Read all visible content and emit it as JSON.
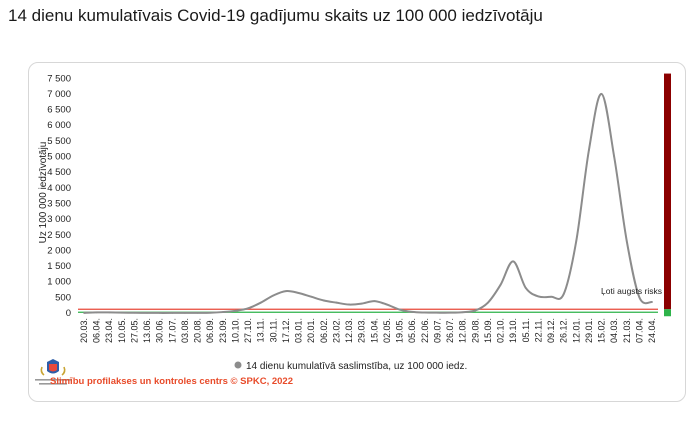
{
  "page_title": "14 dienu kumulatīvais Covid-19 gadījumu skaits uz 100 000 iedzīvotāju",
  "footer": "Slimību profilakses un kontroles centrs © SPKC, 2022",
  "colors": {
    "series": "#8c8c8c",
    "risk_bar": "#8b0000",
    "threshold_red": "#e8483a",
    "threshold_green": "#2db34a",
    "risk_text": "#c62828",
    "footer": "#e84b2a"
  },
  "chart_data": {
    "type": "line",
    "title": "",
    "ylabel": "Uz 100 000 iedzīvotāju",
    "xlabel": "",
    "ylim": [
      0,
      7700
    ],
    "yticks": [
      0,
      500,
      1000,
      1500,
      2000,
      2500,
      3000,
      3500,
      4000,
      4500,
      5000,
      5500,
      6000,
      6500,
      7000,
      7500
    ],
    "ytick_labels": [
      "0",
      "500",
      "1 000",
      "1 500",
      "2 000",
      "2 500",
      "3 000",
      "3 500",
      "4 000",
      "4 500",
      "5 000",
      "5 500",
      "6 000",
      "6 500",
      "7 000",
      "7 500"
    ],
    "categories": [
      "20.03.",
      "06.04.",
      "23.04.",
      "10.05.",
      "27.05.",
      "13.06.",
      "30.06.",
      "17.07.",
      "03.08.",
      "20.08.",
      "06.09.",
      "23.09.",
      "10.10.",
      "27.10.",
      "13.11.",
      "30.11.",
      "17.12.",
      "03.01.",
      "20.01.",
      "06.02.",
      "23.02.",
      "12.03.",
      "29.03.",
      "15.04.",
      "02.05.",
      "19.05.",
      "05.06.",
      "22.06.",
      "09.07.",
      "26.07.",
      "12.08.",
      "29.08.",
      "15.09.",
      "02.10.",
      "19.10.",
      "05.11.",
      "22.11.",
      "09.12.",
      "26.12.",
      "12.01.",
      "29.01.",
      "15.02.",
      "04.03.",
      "21.03.",
      "07.04.",
      "24.04."
    ],
    "x_start": "2020-03-20",
    "series": [
      {
        "name": "14 dienu kumulatīvā saslimstība, uz 100 000 iedz.",
        "values": [
          5,
          20,
          18,
          10,
          8,
          4,
          2,
          2,
          3,
          5,
          8,
          30,
          70,
          150,
          330,
          560,
          700,
          640,
          520,
          400,
          330,
          270,
          300,
          380,
          270,
          110,
          35,
          15,
          10,
          10,
          25,
          80,
          330,
          900,
          1650,
          800,
          530,
          520,
          600,
          2300,
          5200,
          7000,
          5000,
          2300,
          500,
          350
        ]
      }
    ],
    "thresholds": [
      {
        "value": 120,
        "color": "red"
      },
      {
        "value": 25,
        "color": "green"
      }
    ],
    "risk_label": "Ļoti augsts risks",
    "legend": "bottom",
    "grid": false
  }
}
